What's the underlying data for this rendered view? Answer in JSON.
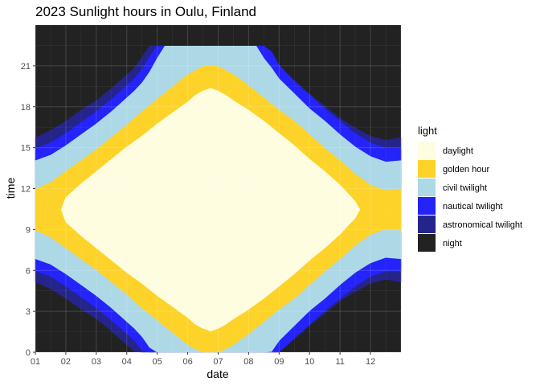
{
  "chart_data": {
    "type": "area",
    "title": "2023 Sunlight hours in Oulu, Finland",
    "xlabel": "date",
    "ylabel": "time",
    "x_ticks": [
      "01",
      "02",
      "03",
      "04",
      "05",
      "06",
      "07",
      "08",
      "09",
      "10",
      "11",
      "12"
    ],
    "y_ticks": [
      0,
      3,
      6,
      9,
      12,
      15,
      18,
      21
    ],
    "xlim": [
      1,
      13
    ],
    "ylim": [
      0,
      24
    ],
    "grid": true,
    "legend_position": "right",
    "legend": {
      "title": "light",
      "entries": [
        {
          "label": "daylight",
          "color": "#fffde0"
        },
        {
          "label": "golden hour",
          "color": "#fdd329"
        },
        {
          "label": "civil twilight",
          "color": "#add8e6"
        },
        {
          "label": "nautical twilight",
          "color": "#2323fa"
        },
        {
          "label": "astronomical twilight",
          "color": "#24248a"
        },
        {
          "label": "night",
          "color": "#222222"
        }
      ]
    },
    "series": [
      {
        "name": "astronomical twilight",
        "color": "#24248a",
        "solar_noon": 10.45,
        "x": [
          1,
          1.5,
          2,
          2.5,
          3,
          3.5,
          4,
          4.25,
          4.5,
          4.75,
          5,
          5.25,
          5.5,
          5.75,
          6,
          6.25,
          6.5,
          6.75,
          7,
          7.25,
          7.5,
          7.75,
          8,
          8.25,
          8.5,
          8.75,
          9,
          9.5,
          10,
          10.5,
          11,
          11.5,
          12,
          12.5,
          13
        ],
        "half_width": [
          5.3,
          5.8,
          6.5,
          7.3,
          8.0,
          8.9,
          9.9,
          10.4,
          11.2,
          12,
          12,
          12,
          12,
          12,
          12,
          12,
          12,
          12,
          12,
          12,
          12,
          12,
          12,
          12,
          12,
          11.4,
          10.5,
          9.5,
          8.5,
          7.6,
          6.7,
          6.0,
          5.4,
          5.1,
          5.3
        ]
      },
      {
        "name": "nautical twilight",
        "color": "#2323fa",
        "solar_noon": 10.45,
        "x": [
          1,
          1.5,
          2,
          2.5,
          3,
          3.5,
          4,
          4.25,
          4.5,
          4.75,
          5,
          5.25,
          5.5,
          5.75,
          6,
          6.25,
          6.5,
          6.75,
          7,
          7.25,
          7.5,
          7.75,
          8,
          8.25,
          8.5,
          8.75,
          9,
          9.5,
          10,
          10.5,
          11,
          11.5,
          12,
          12.5,
          13
        ],
        "half_width": [
          4.5,
          4.9,
          5.6,
          6.4,
          7.2,
          8.1,
          9.1,
          9.6,
          10.3,
          11.2,
          12,
          12,
          12,
          12,
          12,
          12,
          12,
          12,
          12,
          12,
          12,
          12,
          12,
          12,
          12,
          11.6,
          10.6,
          9.4,
          8.4,
          7.4,
          6.5,
          5.6,
          4.9,
          4.5,
          4.5
        ]
      },
      {
        "name": "civil twilight",
        "color": "#add8e6",
        "solar_noon": 10.45,
        "x": [
          1,
          1.5,
          2,
          2.5,
          3,
          3.5,
          4,
          4.25,
          4.5,
          4.75,
          5,
          5.25,
          5.5,
          5.75,
          6,
          6.25,
          6.5,
          6.75,
          7,
          7.25,
          7.5,
          7.75,
          8,
          8.25,
          8.5,
          8.75,
          9,
          9.5,
          10,
          10.5,
          11,
          11.5,
          12,
          12.5,
          13
        ],
        "half_width": [
          3.6,
          4.0,
          4.7,
          5.5,
          6.3,
          7.2,
          8.2,
          8.7,
          9.3,
          10.1,
          11.1,
          12,
          12,
          12,
          12,
          12,
          12,
          12,
          12,
          12,
          12,
          12,
          12,
          12,
          11.1,
          10.4,
          9.6,
          8.5,
          7.4,
          6.5,
          5.5,
          4.6,
          3.9,
          3.5,
          3.6
        ]
      },
      {
        "name": "golden hour",
        "color": "#fdd329",
        "solar_noon": 10.45,
        "x": [
          1,
          1.5,
          2,
          2.5,
          3,
          3.5,
          4,
          4.5,
          5,
          5.5,
          6,
          6.25,
          6.5,
          6.75,
          7,
          7.25,
          7.5,
          8,
          8.5,
          9,
          9.5,
          10,
          10.5,
          11,
          11.5,
          12,
          12.5,
          13
        ],
        "half_width": [
          1.5,
          2.0,
          2.8,
          3.6,
          4.4,
          5.3,
          6.2,
          7.2,
          8.1,
          9.0,
          9.9,
          10.2,
          10.5,
          10.6,
          10.5,
          10.2,
          9.9,
          9.1,
          8.2,
          7.3,
          6.5,
          5.5,
          4.5,
          3.6,
          2.6,
          1.8,
          1.4,
          1.5
        ]
      },
      {
        "name": "daylight",
        "color": "#fffde0",
        "solar_noon": 10.45,
        "x": [
          1.85,
          2,
          2.5,
          3,
          3.5,
          4,
          4.5,
          5,
          5.5,
          6,
          6.25,
          6.5,
          6.75,
          7,
          7.25,
          7.5,
          8,
          8.5,
          9,
          9.5,
          10,
          10.5,
          11,
          11.5,
          11.65
        ],
        "half_width": [
          0,
          0.9,
          1.9,
          2.8,
          3.7,
          4.6,
          5.4,
          6.3,
          7.1,
          7.9,
          8.4,
          8.7,
          8.9,
          8.7,
          8.4,
          8.0,
          7.3,
          6.5,
          5.6,
          4.7,
          3.7,
          2.8,
          1.8,
          0.6,
          0
        ]
      }
    ]
  }
}
